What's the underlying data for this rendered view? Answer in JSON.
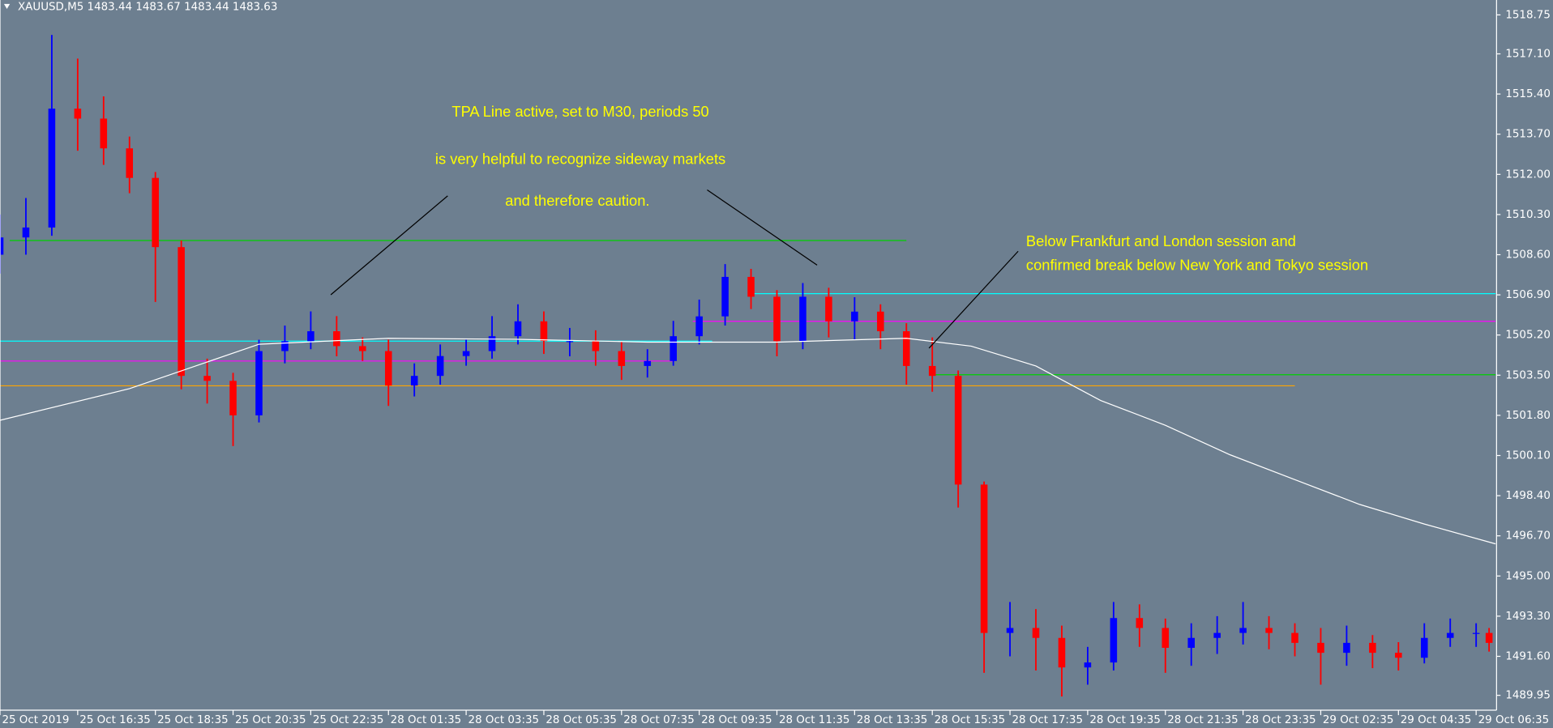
{
  "chart_data": {
    "type": "candlestick",
    "title": "XAUUSD,M5  1483.44 1483.67 1483.44 1483.63",
    "background": "#6d7f90",
    "up_color": "#0000ff",
    "down_color": "#ff0000",
    "xlim": [
      0,
      462
    ],
    "ylim": [
      1489.32,
      1519.38
    ],
    "xticks": [
      {
        "value": 0,
        "label": "25 Oct 2019"
      },
      {
        "value": 24,
        "label": "25 Oct 16:35"
      },
      {
        "value": 48,
        "label": "25 Oct 18:35"
      },
      {
        "value": 72,
        "label": "25 Oct 20:35"
      },
      {
        "value": 96,
        "label": "25 Oct 22:35"
      },
      {
        "value": 120,
        "label": "28 Oct 01:35"
      },
      {
        "value": 144,
        "label": "28 Oct 03:35"
      },
      {
        "value": 168,
        "label": "28 Oct 05:35"
      },
      {
        "value": 192,
        "label": "28 Oct 07:35"
      },
      {
        "value": 216,
        "label": "28 Oct 09:35"
      },
      {
        "value": 240,
        "label": "28 Oct 11:35"
      },
      {
        "value": 264,
        "label": "28 Oct 13:35"
      },
      {
        "value": 288,
        "label": "28 Oct 15:35"
      },
      {
        "value": 312,
        "label": "28 Oct 17:35"
      },
      {
        "value": 336,
        "label": "28 Oct 19:35"
      },
      {
        "value": 360,
        "label": "28 Oct 21:35"
      },
      {
        "value": 384,
        "label": "28 Oct 23:35"
      },
      {
        "value": 408,
        "label": "29 Oct 02:35"
      },
      {
        "value": 432,
        "label": "29 Oct 04:35"
      },
      {
        "value": 456,
        "label": "29 Oct 06:35"
      }
    ],
    "yticks": [
      1518.75,
      {
        "value": 1517.1,
        "label": "1517.10"
      },
      {
        "value": 1515.4,
        "label": "1515.40"
      },
      {
        "value": 1513.7,
        "label": "1513.70"
      },
      {
        "value": 1512,
        "label": "1512.00"
      },
      {
        "value": 1510.3,
        "label": "1510.30"
      },
      {
        "value": 1508.6,
        "label": "1508.60"
      },
      {
        "value": 1506.9,
        "label": "1506.90"
      },
      {
        "value": 1505.2,
        "label": "1505.20"
      },
      {
        "value": 1503.5,
        "label": "1503.50"
      },
      {
        "value": 1501.8,
        "label": "1501.80"
      },
      {
        "value": 1500.1,
        "label": "1500.10"
      },
      {
        "value": 1498.4,
        "label": "1498.40"
      },
      {
        "value": 1496.7,
        "label": "1496.70"
      },
      {
        "value": 1495,
        "label": "1495.00"
      },
      {
        "value": 1493.3,
        "label": "1493.30"
      },
      {
        "value": 1491.6,
        "label": "1491.60"
      },
      1489.95
    ],
    "x": [
      0,
      8,
      16,
      24,
      32,
      40,
      48,
      56,
      64,
      72,
      80,
      88,
      96,
      104,
      112,
      120,
      128,
      136,
      144,
      152,
      160,
      168,
      176,
      184,
      192,
      200,
      208,
      216,
      224,
      232,
      240,
      248,
      256,
      264,
      272,
      280,
      288,
      296,
      304,
      312,
      320,
      328,
      336,
      344,
      352,
      360,
      368,
      376,
      384,
      392,
      400,
      408,
      416,
      424,
      432,
      440,
      448,
      456,
      460
    ],
    "open": [
      1508.6,
      1509.33,
      1509.75,
      1514.78,
      1514.36,
      1513.1,
      1511.85,
      1508.92,
      1503.47,
      1503.26,
      1501.8,
      1504.52,
      1504.94,
      1505.36,
      1504.73,
      1504.52,
      1503.06,
      1503.47,
      1504.31,
      1504.52,
      1505.15,
      1505.78,
      1504.94,
      1504.94,
      1504.52,
      1503.89,
      1504.1,
      1505.15,
      1505.99,
      1507.66,
      1506.82,
      1504.94,
      1506.82,
      1505.78,
      1506.19,
      1505.36,
      1503.89,
      1503.47,
      1498.87,
      1492.59,
      1492.8,
      1492.38,
      1491.13,
      1491.34,
      1493.22,
      1492.8,
      1491.96,
      1492.38,
      1492.59,
      1492.8,
      1492.59,
      1492.17,
      1491.75,
      1492.17,
      1491.75,
      1491.54,
      1492.38,
      1492.59,
      1492.59
    ],
    "high": [
      1510.3,
      1511.0,
      1517.9,
      1516.9,
      1515.3,
      1513.6,
      1512.1,
      1509.2,
      1504.2,
      1503.6,
      1505.0,
      1505.6,
      1506.2,
      1506.0,
      1505.1,
      1505.0,
      1504.0,
      1504.8,
      1505.0,
      1506.0,
      1506.5,
      1506.2,
      1505.5,
      1505.4,
      1504.9,
      1504.6,
      1505.8,
      1506.7,
      1508.2,
      1508.0,
      1507.1,
      1507.4,
      1507.2,
      1506.8,
      1506.5,
      1505.7,
      1505.1,
      1503.7,
      1499.0,
      1493.9,
      1493.6,
      1492.9,
      1492.0,
      1493.9,
      1493.8,
      1493.2,
      1493.0,
      1493.3,
      1493.9,
      1493.3,
      1493.0,
      1492.8,
      1492.9,
      1492.5,
      1492.2,
      1493.0,
      1493.2,
      1493.0,
      1492.8
    ],
    "low": [
      1507.8,
      1508.6,
      1509.4,
      1513.0,
      1512.4,
      1511.2,
      1506.6,
      1502.9,
      1502.3,
      1500.5,
      1501.5,
      1504.0,
      1504.6,
      1504.3,
      1504.1,
      1502.2,
      1502.6,
      1503.1,
      1503.9,
      1504.2,
      1504.8,
      1504.4,
      1504.3,
      1503.9,
      1503.3,
      1503.4,
      1503.9,
      1504.8,
      1505.6,
      1506.3,
      1504.3,
      1504.6,
      1505.1,
      1505.0,
      1504.6,
      1503.1,
      1502.8,
      1497.9,
      1490.9,
      1491.6,
      1491.0,
      1489.9,
      1490.4,
      1491.0,
      1492.0,
      1490.9,
      1491.2,
      1491.7,
      1492.1,
      1491.9,
      1491.6,
      1490.4,
      1491.2,
      1491.1,
      1491.0,
      1491.3,
      1492.0,
      1492.0,
      1491.8
    ],
    "close": [
      1509.33,
      1509.75,
      1514.78,
      1514.36,
      1513.1,
      1511.85,
      1508.92,
      1503.47,
      1503.26,
      1501.8,
      1504.52,
      1504.94,
      1505.36,
      1504.73,
      1504.52,
      1503.06,
      1503.47,
      1504.31,
      1504.52,
      1505.15,
      1505.78,
      1504.94,
      1504.94,
      1504.52,
      1503.89,
      1504.1,
      1505.15,
      1505.99,
      1507.66,
      1506.82,
      1504.94,
      1506.82,
      1505.78,
      1506.19,
      1505.36,
      1503.89,
      1503.47,
      1498.87,
      1492.59,
      1492.8,
      1492.38,
      1491.13,
      1491.34,
      1493.22,
      1492.8,
      1491.96,
      1492.38,
      1492.59,
      1492.8,
      1492.59,
      1492.17,
      1491.75,
      1492.17,
      1491.75,
      1491.54,
      1492.38,
      1492.59,
      1492.59,
      1492.17
    ],
    "series": [
      {
        "color": "#ffffff",
        "x": [
          0,
          40,
          80,
          120,
          160,
          200,
          240,
          280,
          300,
          320,
          340,
          360,
          380,
          400,
          420,
          440,
          462
        ],
        "values": [
          1501.59,
          1502.93,
          1504.81,
          1505.06,
          1505.02,
          1504.9,
          1504.9,
          1505.06,
          1504.73,
          1503.89,
          1502.43,
          1501.38,
          1500.13,
          1499.08,
          1498.03,
          1497.2,
          1496.36
        ]
      }
    ],
    "levels": [
      {
        "price": 1509.2,
        "x": [
          3,
          280
        ],
        "color": "#00d000"
      },
      {
        "price": 1504.94,
        "x": [
          0,
          220
        ],
        "color": "#00ffff"
      },
      {
        "price": 1504.1,
        "x": [
          0,
          208
        ],
        "color": "#ff00ff"
      },
      {
        "price": 1503.05,
        "x": [
          0,
          400
        ],
        "color": "#ffa500"
      },
      {
        "price": 1506.95,
        "x": [
          231,
          462
        ],
        "color": "#00ffff"
      },
      {
        "price": 1505.78,
        "x": [
          214,
          462
        ],
        "color": "#ff00ff"
      },
      {
        "price": 1503.52,
        "x": [
          288,
          462
        ],
        "color": "#00d000"
      }
    ],
    "annotations": [
      {
        "lines": [
          "TPA Line active, set to M30, periods 50",
          "is very helpful to recognize sideway markets",
          "and therefore caution."
        ]
      },
      {
        "lines": [
          "Below Frankfurt and London session and",
          "confirmed break below New York and Tokyo session"
        ]
      }
    ]
  }
}
